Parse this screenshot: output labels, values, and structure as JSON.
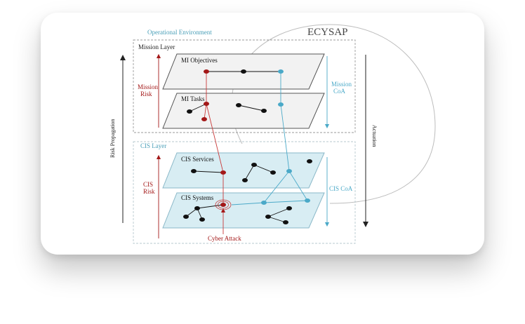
{
  "diagram": {
    "title": "ECYSAP",
    "operational_environment": "Operational Environment",
    "mission_layer": "Mission Layer",
    "cis_layer": "CIS Layer",
    "planes": {
      "mi_objectives": "MI Objectives",
      "mi_tasks": "MI Tasks",
      "cis_services": "CIS Services",
      "cis_systems": "CIS Systems"
    },
    "risk_labels": {
      "mission_risk_line1": "Mission",
      "mission_risk_line2": "Risk",
      "cis_risk_line1": "CIS",
      "cis_risk_line2": "Risk"
    },
    "coa_labels": {
      "mission_coa_line1": "Mission",
      "mission_coa_line2": "CoA",
      "cis_coa": "CIS CoA"
    },
    "side_labels": {
      "risk_propagation": "Risk Propagation",
      "actuation": "Actuation"
    },
    "cyber_attack": "Cyber Attack",
    "colors": {
      "risk_red": "#a31818",
      "coa_blue": "#4aa9c8",
      "plane_gray": "#f2f2f2",
      "plane_blue": "#d8edf3",
      "env_teal": "#4a9fb8"
    }
  }
}
